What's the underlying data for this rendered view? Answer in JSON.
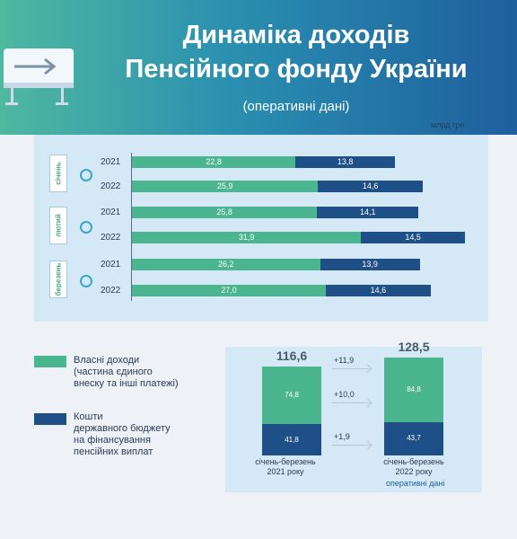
{
  "header": {
    "title_line1": "Динаміка доходів",
    "title_line2": "Пенсійного фонду України",
    "subtitle": "(оперативні дані)"
  },
  "unit": "млрд грн",
  "colors": {
    "own": "#4ab58e",
    "state": "#1e4f86"
  },
  "chart_data": [
    {
      "type": "bar",
      "orientation": "horizontal",
      "stacked": true,
      "months": [
        "січень",
        "лютий",
        "березень"
      ],
      "categories": [
        "2021",
        "2022",
        "2021",
        "2022",
        "2021",
        "2022"
      ],
      "series": [
        {
          "name": "Власні доходи (частина єдиного внеску та інші платежі)",
          "values": [
            22.8,
            25.9,
            25.8,
            31.9,
            26.2,
            27.0
          ],
          "labels": [
            "22,8",
            "25,9",
            "25,8",
            "31,9",
            "26,2",
            "27,0"
          ]
        },
        {
          "name": "Кошти державного бюджету на фінансування пенсійних виплат",
          "values": [
            13.8,
            14.6,
            14.1,
            14.5,
            13.9,
            14.6
          ],
          "labels": [
            "13,8",
            "14,6",
            "14,1",
            "14,5",
            "13,9",
            "14,6"
          ]
        }
      ]
    },
    {
      "type": "bar",
      "stacked": true,
      "categories": [
        "січень-березень 2021 року",
        "січень-березень 2022 року"
      ],
      "category_lines": [
        [
          "січень-березень",
          "2021 року"
        ],
        [
          "січень-березень",
          "2022 року"
        ]
      ],
      "totals": [
        "116,6",
        "128,5"
      ],
      "series": [
        {
          "name": "Власні доходи (частина єдиного внеску та інші платежі)",
          "values": [
            74.8,
            84.8
          ],
          "labels": [
            "74,8",
            "84,8"
          ]
        },
        {
          "name": "Кошти державного бюджету на фінансування пенсійних виплат",
          "values": [
            41.8,
            43.7
          ],
          "labels": [
            "41,8",
            "43,7"
          ]
        }
      ],
      "differences": [
        "+11,9",
        "+10,0",
        "+1,9"
      ],
      "note": "оперативні дані"
    }
  ],
  "legend": [
    {
      "lines": [
        "Власні доходи",
        "(частина єдиного",
        "внеску та інші платежі)"
      ]
    },
    {
      "lines": [
        "Кошти",
        "державного бюджету",
        "на фінансування",
        "пенсійних виплат"
      ]
    }
  ]
}
